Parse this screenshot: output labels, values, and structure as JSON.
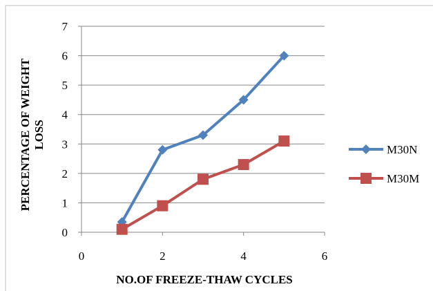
{
  "chart_data": {
    "type": "line",
    "title": "",
    "xlabel": "NO.OF FREEZE-THAW CYCLES",
    "ylabel_lines": [
      "PERCENTAGE OF WEIGHT",
      "LOSS"
    ],
    "xlim": [
      0,
      6
    ],
    "ylim": [
      0,
      7
    ],
    "x_ticks": [
      0,
      2,
      4,
      6
    ],
    "y_ticks": [
      0,
      1,
      2,
      3,
      4,
      5,
      6,
      7
    ],
    "grid": "horizontal",
    "legend_position": "right",
    "series": [
      {
        "name": "M30N",
        "color": "#4F81BD",
        "marker": "diamond",
        "x": [
          1,
          2,
          3,
          4,
          5
        ],
        "y": [
          0.35,
          2.8,
          3.3,
          4.5,
          6.0
        ]
      },
      {
        "name": "M30M",
        "color": "#C0504D",
        "marker": "square",
        "x": [
          1,
          2,
          3,
          4,
          5
        ],
        "y": [
          0.1,
          0.9,
          1.8,
          2.3,
          3.1
        ]
      }
    ]
  }
}
